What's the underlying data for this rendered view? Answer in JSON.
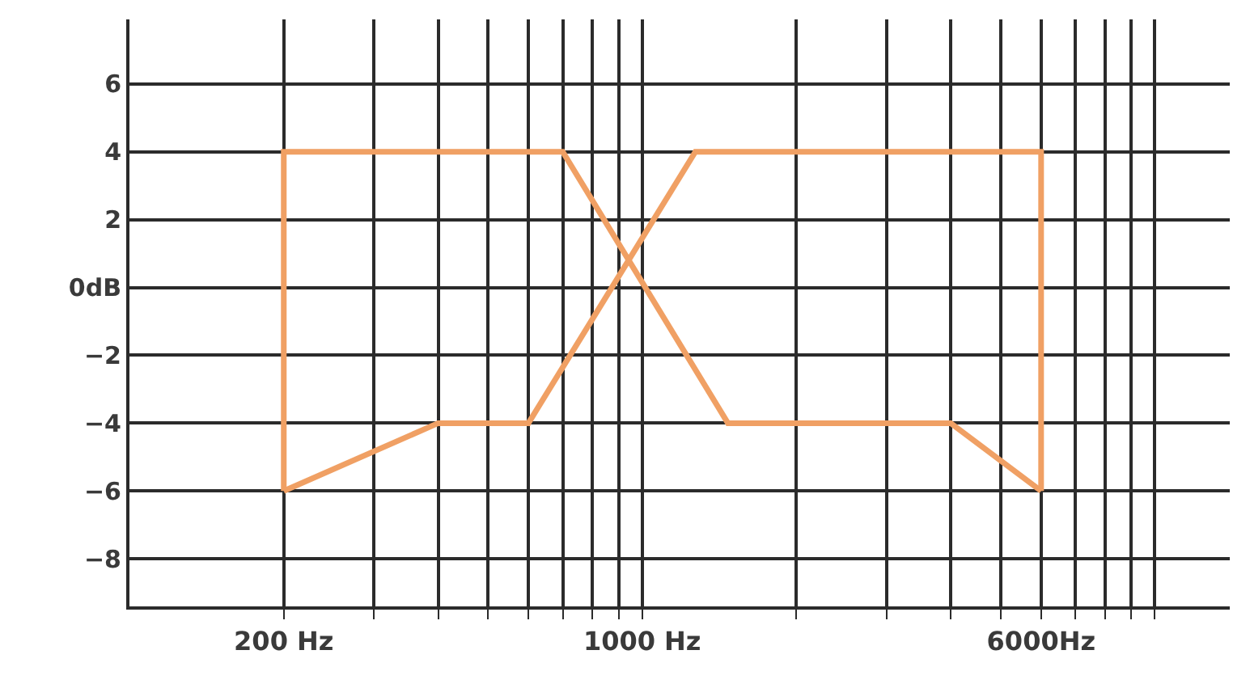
{
  "chart_data": {
    "type": "line",
    "log": "x",
    "series": [
      {
        "color": "#f0a064",
        "x": [
          200,
          200,
          700,
          1470,
          4000,
          6000
        ],
        "values": [
          -6,
          4,
          4,
          -4,
          -4,
          -6
        ]
      },
      {
        "color": "#f0a064",
        "x": [
          200,
          400,
          600,
          1270,
          6000,
          6000
        ],
        "values": [
          -6,
          -4,
          -4,
          4,
          4,
          -6
        ]
      }
    ],
    "xlim": [
      100,
      14000
    ],
    "xticks": [
      {
        "value": 200,
        "label": "200 Hz"
      },
      {
        "value": 300,
        "label": null
      },
      {
        "value": 400,
        "label": null
      },
      {
        "value": 500,
        "label": null
      },
      {
        "value": 600,
        "label": null
      },
      {
        "value": 700,
        "label": null
      },
      {
        "value": 800,
        "label": null
      },
      {
        "value": 900,
        "label": null
      },
      {
        "value": 1000,
        "label": "1000 Hz"
      },
      {
        "value": 2000,
        "label": null
      },
      {
        "value": 3000,
        "label": null
      },
      {
        "value": 4000,
        "label": null
      },
      {
        "value": 5000,
        "label": null
      },
      {
        "value": 6000,
        "label": "6000Hz"
      },
      {
        "value": 7000,
        "label": null
      },
      {
        "value": 8000,
        "label": null
      },
      {
        "value": 9000,
        "label": null
      },
      {
        "value": 10000,
        "label": null
      }
    ],
    "ylim": [
      -9.4,
      7.9
    ],
    "yticks": [
      6,
      4,
      2,
      {
        "value": 0,
        "label": "0dB"
      },
      -2,
      -4,
      -6,
      -8
    ],
    "grid": true,
    "marker": "none",
    "line_style": "solid"
  }
}
